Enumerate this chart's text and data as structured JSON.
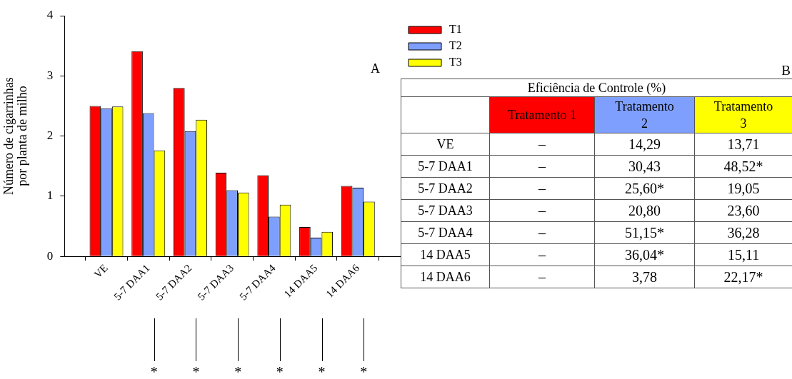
{
  "chart_data": [
    {
      "type": "bar",
      "ylabel": "Número de cigarrinhas\npor planta de milho",
      "categories": [
        "VE",
        "5-7 DAA1",
        "5-7 DAA2",
        "5-7 DAA3",
        "5-7 DAA4",
        "14 DAA5",
        "14 DAA6"
      ],
      "series": [
        {
          "name": "T1",
          "color": "#ff0000",
          "values": [
            2.5,
            3.41,
            2.8,
            1.39,
            1.35,
            0.49,
            1.17
          ]
        },
        {
          "name": "T2",
          "color": "#7f9fff",
          "values": [
            2.46,
            2.38,
            2.08,
            1.1,
            0.66,
            0.31,
            1.14
          ]
        },
        {
          "name": "T3",
          "color": "#ffff00",
          "values": [
            2.49,
            1.76,
            2.27,
            1.06,
            0.86,
            0.41,
            0.91
          ]
        }
      ],
      "ylim": [
        0,
        4
      ],
      "yticks": [
        0,
        1,
        2,
        3,
        4
      ],
      "grid": false,
      "legend": "top right",
      "annotations": [
        "A",
        "*",
        "*",
        "*",
        "*",
        "*",
        "*"
      ]
    },
    {
      "type": "other",
      "title": "Eficiência de Controle (%)",
      "categories": [
        "Tratamento 1",
        "Tratamento 2",
        "Tratamento 3"
      ],
      "colors": [
        "#ff0000",
        "#7f9fff",
        "#ffff00"
      ],
      "y_categories": [
        "VE",
        "5-7 DAA1",
        "5-7 DAA2",
        "5-7 DAA3",
        "5-7 DAA4",
        "14 DAA5",
        "14 DAA6"
      ],
      "cell_labels": [
        [
          "–",
          "14,29",
          "13,71"
        ],
        [
          "–",
          "30,43",
          "48,52*"
        ],
        [
          "–",
          "25,60*",
          "19,05"
        ],
        [
          "–",
          "20,80",
          "23,60"
        ],
        [
          "–",
          "51,15*",
          "36,28"
        ],
        [
          "–",
          "36,04*",
          "15,11"
        ],
        [
          "–",
          "3,78",
          "22,17*"
        ]
      ],
      "annotations": [
        "B"
      ]
    }
  ]
}
